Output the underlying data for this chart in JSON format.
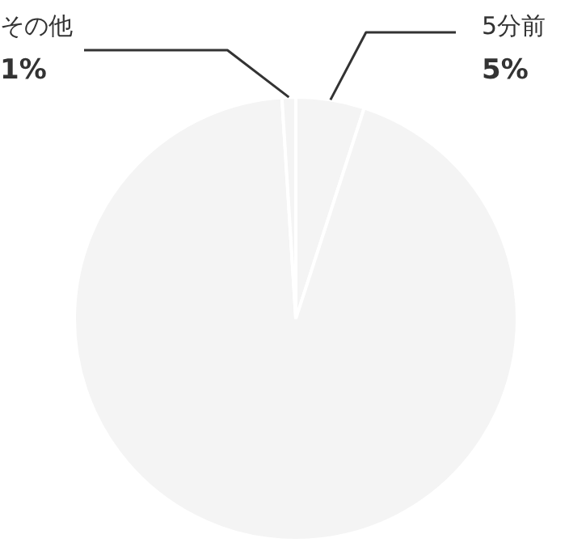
{
  "chart_data": {
    "type": "pie",
    "categories": [
      "5分前",
      null,
      "その他"
    ],
    "values": [
      5,
      94,
      1
    ],
    "colors": [
      "#f4f4f4",
      "#f4f4f4",
      "#f4f4f4"
    ],
    "value_labels": [
      "5%",
      null,
      "1%"
    ],
    "legend": false
  }
}
